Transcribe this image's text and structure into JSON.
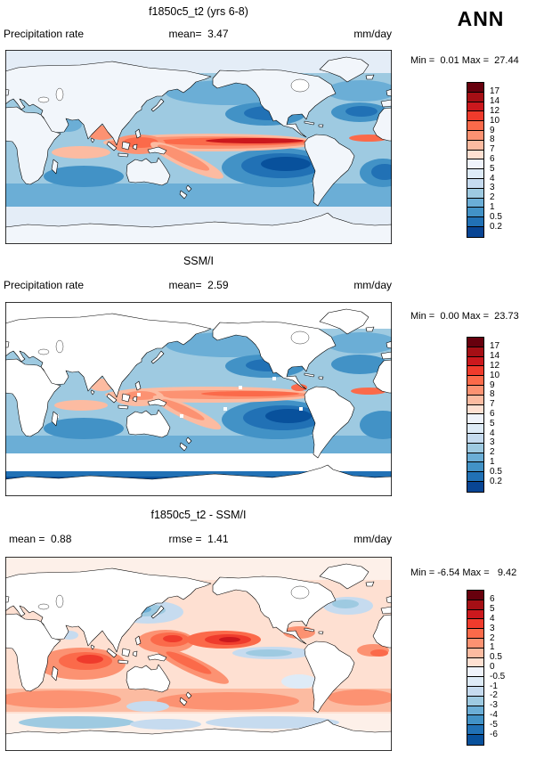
{
  "header": {
    "season": "ANN"
  },
  "panels": [
    {
      "title": "f1850c5_t2 (yrs 6-8)",
      "left_label": "Precipitation rate",
      "mid_label": "mean=  3.47",
      "right_label": "mm/day",
      "minmax": "Min =  0.01 Max =  27.44",
      "colorbar": {
        "ticks": [
          "17",
          "14",
          "12",
          "10",
          "9",
          "8",
          "7",
          "6",
          "5",
          "4",
          "3",
          "2",
          "1",
          "0.5",
          "0.2"
        ],
        "colors": [
          "#67000d",
          "#a50f15",
          "#cb181d",
          "#ef3b2c",
          "#fb6a4a",
          "#fc9272",
          "#fcbba1",
          "#fee0d2",
          "#eff3fb",
          "#deebf7",
          "#c6dbef",
          "#9ecae1",
          "#6baed6",
          "#4292c6",
          "#2171b5",
          "#084594"
        ]
      }
    },
    {
      "title": "SSM/I",
      "left_label": "Precipitation rate",
      "mid_label": "mean=  2.59",
      "right_label": "mm/day",
      "minmax": "Min =  0.00 Max =  23.73",
      "colorbar": {
        "ticks": [
          "17",
          "14",
          "12",
          "10",
          "9",
          "8",
          "7",
          "6",
          "5",
          "4",
          "3",
          "2",
          "1",
          "0.5",
          "0.2"
        ],
        "colors": [
          "#67000d",
          "#a50f15",
          "#cb181d",
          "#ef3b2c",
          "#fb6a4a",
          "#fc9272",
          "#fcbba1",
          "#fee0d2",
          "#eff3fb",
          "#deebf7",
          "#c6dbef",
          "#9ecae1",
          "#6baed6",
          "#4292c6",
          "#2171b5",
          "#084594"
        ]
      }
    },
    {
      "title": "f1850c5_t2 - SSM/I",
      "left_label": "mean =  0.88",
      "mid_label": "rmse =  1.41",
      "right_label": "mm/day",
      "minmax": "Min = -6.54 Max =   9.42",
      "colorbar": {
        "ticks": [
          "6",
          "5",
          "4",
          "3",
          "2",
          "1",
          "0.5",
          "0",
          "-0.5",
          "-1",
          "-2",
          "-3",
          "-4",
          "-5",
          "-6"
        ],
        "colors": [
          "#67000d",
          "#a50f15",
          "#cb181d",
          "#ef3b2c",
          "#fb6a4a",
          "#fc9272",
          "#fcbba1",
          "#fee0d2",
          "#eff3fb",
          "#deebf7",
          "#c6dbef",
          "#9ecae1",
          "#6baed6",
          "#4292c6",
          "#2171b5",
          "#08519c"
        ]
      }
    }
  ],
  "chart_data": [
    {
      "type": "heatmap",
      "title": "f1850c5_t2 (yrs 6-8)",
      "variable": "Precipitation rate",
      "season": "ANN",
      "units": "mm/day",
      "mean": 3.47,
      "min": 0.01,
      "max": 27.44,
      "contour_levels": [
        0.2,
        0.5,
        1,
        2,
        3,
        4,
        5,
        6,
        7,
        8,
        9,
        10,
        12,
        14,
        17
      ],
      "projection": "global latitude-longitude world map, 0-360E",
      "legend_position": "right",
      "description": "Annual mean model precipitation: dark blue subtropical ocean minima, strong red ITCZ band along the equatorial Pacific, orange SPCZ and warm pool"
    },
    {
      "type": "heatmap",
      "title": "SSM/I",
      "variable": "Precipitation rate",
      "season": "ANN",
      "units": "mm/day",
      "mean": 2.59,
      "min": 0.0,
      "max": 23.73,
      "contour_levels": [
        0.2,
        0.5,
        1,
        2,
        3,
        4,
        5,
        6,
        7,
        8,
        9,
        10,
        12,
        14,
        17
      ],
      "projection": "global latitude-longitude world map, 0-360E",
      "legend_position": "right",
      "description": "SSM/I satellite observed precipitation, ocean only; land and high latitudes masked white"
    },
    {
      "type": "heatmap",
      "title": "f1850c5_t2 - SSM/I",
      "variable": "Precipitation rate difference",
      "season": "ANN",
      "units": "mm/day",
      "mean": 0.88,
      "rmse": 1.41,
      "min": -6.54,
      "max": 9.42,
      "contour_levels": [
        -6,
        -5,
        -4,
        -3,
        -2,
        -1,
        -0.5,
        0,
        0.5,
        1,
        2,
        3,
        4,
        5,
        6
      ],
      "projection": "global latitude-longitude world map, 0-360E",
      "legend_position": "right",
      "description": "Model minus observations: widespread light-red positive bias, strong red in west/central tropical Pacific and Indian Ocean, blue negative areas in NW Pacific, east equatorial Pacific and North Atlantic"
    }
  ]
}
